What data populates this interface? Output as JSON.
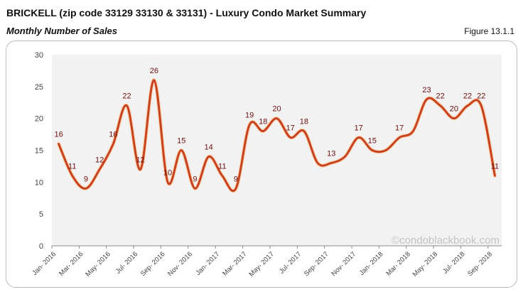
{
  "header": {
    "title": "BRICKELL (zip code 33129 33130 & 33131) - Luxury Condo Market Summary",
    "subtitle": "Monthly Number of Sales",
    "figure": "Figure 13.1.1"
  },
  "watermark": "©condoblackbook.com",
  "chart_data": {
    "type": "line",
    "categories": [
      "Jan- 2016",
      "Feb- 2016",
      "Mar- 2016",
      "Apr- 2016",
      "May- 2016",
      "Jun- 2016",
      "Jul- 2016",
      "Aug- 2016",
      "Sep- 2016",
      "Oct- 2016",
      "Nov- 2016",
      "Dec- 2016",
      "Jan- 2017",
      "Feb- 2017",
      "Mar- 2017",
      "Apr- 2017",
      "May- 2017",
      "Jun- 2017",
      "Jul- 2017",
      "Aug- 2017",
      "Sep- 2017",
      "Oct- 2017",
      "Nov- 2017",
      "Dec- 2017",
      "Jan- 2018",
      "Feb- 2018",
      "Mar- 2018",
      "Apr- 2018",
      "May- 2018",
      "Jun- 2018",
      "Jul- 2018",
      "Aug- 2018",
      "Sep- 2018"
    ],
    "values": [
      16,
      11,
      9,
      12,
      16,
      22,
      12,
      26,
      10,
      15,
      9,
      14,
      11,
      9,
      19,
      18,
      20,
      17,
      18,
      13,
      13,
      14,
      17,
      15,
      15,
      17,
      18,
      23,
      22,
      20,
      22,
      22,
      11
    ],
    "data_labels": [
      16,
      11,
      9,
      12,
      16,
      22,
      12,
      26,
      10,
      15,
      9,
      14,
      11,
      9,
      19,
      18,
      20,
      17,
      18,
      null,
      13,
      null,
      17,
      15,
      null,
      17,
      null,
      23,
      22,
      20,
      22,
      22,
      11
    ],
    "yticks": [
      0,
      5,
      10,
      15,
      20,
      25,
      30
    ],
    "ylim": [
      0,
      30
    ],
    "x_tick_labels_every": 2,
    "smooth": true,
    "grid": false,
    "colors": {
      "line": "#c8421f",
      "label": "#6e0f0f",
      "plot_bg": "#f2f2f2"
    }
  }
}
